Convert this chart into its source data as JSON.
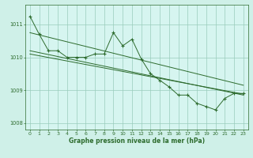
{
  "title": "",
  "xlabel": "Graphe pression niveau de la mer (hPa)",
  "background_color": "#cff0e8",
  "plot_bg_color": "#d6f5f0",
  "grid_color": "#99ccbb",
  "line_color": "#2d6b2d",
  "xlim": [
    -0.5,
    23.5
  ],
  "ylim": [
    1007.8,
    1011.6
  ],
  "xticks": [
    0,
    1,
    2,
    3,
    4,
    5,
    6,
    7,
    8,
    9,
    10,
    11,
    12,
    13,
    14,
    15,
    16,
    17,
    18,
    19,
    20,
    21,
    22,
    23
  ],
  "yticks": [
    1008,
    1009,
    1010,
    1011
  ],
  "series_main": {
    "x": [
      0,
      1,
      2,
      3,
      4,
      5,
      6,
      7,
      8,
      9,
      10,
      11,
      12,
      13,
      14,
      15,
      16,
      17,
      18,
      19,
      20,
      21,
      22,
      23
    ],
    "y": [
      1011.25,
      1010.7,
      1010.2,
      1010.2,
      1010.0,
      1010.0,
      1010.0,
      1010.1,
      1010.1,
      1010.75,
      1010.35,
      1010.55,
      1009.95,
      1009.5,
      1009.3,
      1009.1,
      1008.85,
      1008.85,
      1008.6,
      1008.5,
      1008.4,
      1008.75,
      1008.9,
      1008.9
    ]
  },
  "trend1": {
    "x": [
      0,
      23
    ],
    "y": [
      1010.75,
      1009.15
    ]
  },
  "trend2": {
    "x": [
      0,
      23
    ],
    "y": [
      1010.2,
      1008.85
    ]
  },
  "trend3": {
    "x": [
      0,
      23
    ],
    "y": [
      1010.1,
      1008.88
    ]
  }
}
